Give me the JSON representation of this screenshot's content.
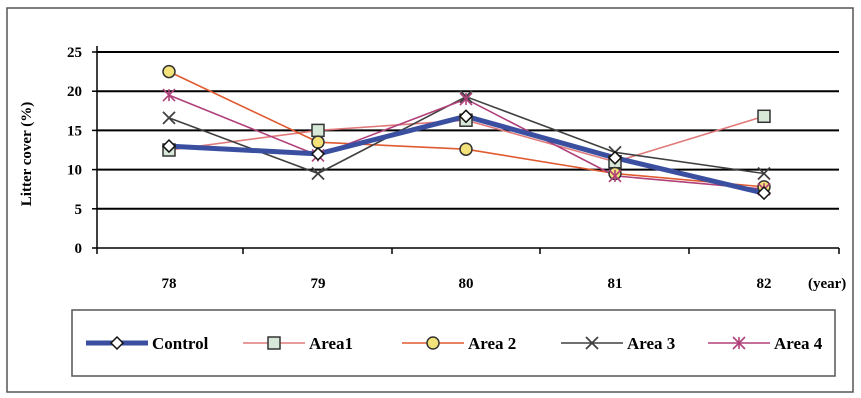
{
  "chart_data": {
    "type": "line",
    "title": "",
    "xlabel": "(year)",
    "ylabel": "Litter cover (%)",
    "categories": [
      "78",
      "79",
      "80",
      "81",
      "82"
    ],
    "ylim": [
      0,
      25
    ],
    "yticks": [
      "0",
      "5",
      "10",
      "15",
      "20",
      "25"
    ],
    "grid": "horizontal",
    "legend_position": "bottom",
    "series": [
      {
        "name": "Control",
        "values": [
          13,
          12,
          16.8,
          11.5,
          7
        ],
        "color": "#3a4fa0",
        "marker": "diamond"
      },
      {
        "name": "Area1",
        "values": [
          12.5,
          15,
          16.3,
          11,
          16.8
        ],
        "color": "#e07a7a",
        "marker": "square"
      },
      {
        "name": "Area 2",
        "values": [
          22.5,
          13.5,
          12.6,
          9.5,
          7.8
        ],
        "color": "#e05a30",
        "marker": "circle"
      },
      {
        "name": "Area 3",
        "values": [
          16.6,
          9.5,
          19.3,
          12.2,
          9.5
        ],
        "color": "#404040",
        "marker": "x"
      },
      {
        "name": "Area 4",
        "values": [
          19.5,
          11.8,
          19,
          9.2,
          7.5
        ],
        "color": "#b0407a",
        "marker": "star"
      }
    ]
  }
}
